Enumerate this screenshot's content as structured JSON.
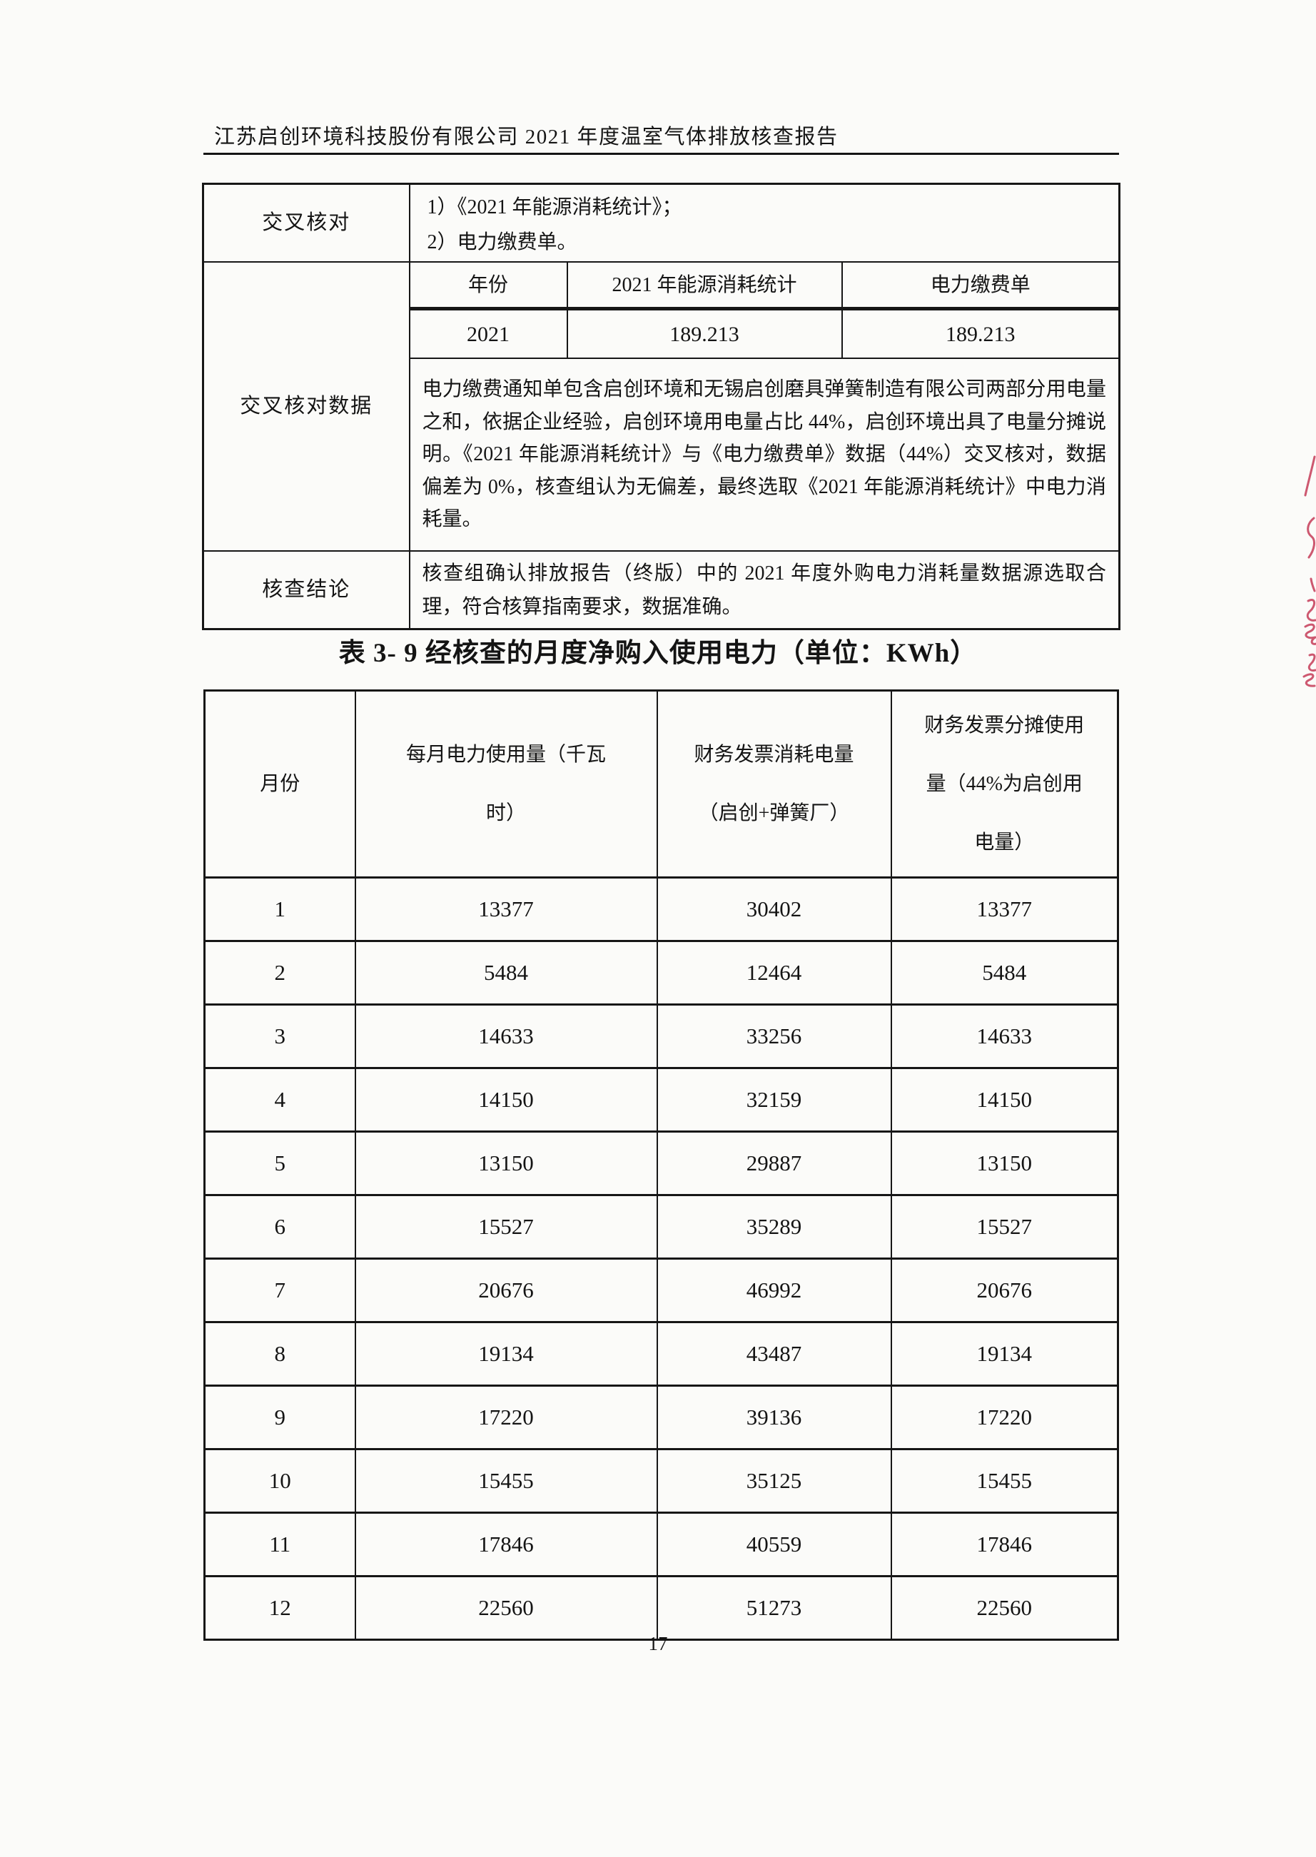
{
  "page": {
    "header_title": "江苏启创环境科技股份有限公司 2021 年度温室气体排放核查报告",
    "page_number": "17"
  },
  "summary_table": {
    "cross_check": {
      "label": "交叉核对",
      "line1": "1）《2021 年能源消耗统计》；",
      "line2": "2）电力缴费单。"
    },
    "cross_check_data": {
      "label": "交叉核对数据",
      "nested_header": [
        "年份",
        "2021 年能源消耗统计",
        "电力缴费单"
      ],
      "nested_values": [
        "2021",
        "189.213",
        "189.213"
      ],
      "paragraph": "电力缴费通知单包含启创环境和无锡启创磨具弹簧制造有限公司两部分用电量之和，依据企业经验，启创环境用电量占比 44%，启创环境出具了电量分摊说明。《2021 年能源消耗统计》与《电力缴费单》数据（44%）交叉核对，数据偏差为 0%，核查组认为无偏差，最终选取《2021 年能源消耗统计》中电力消耗量。"
    },
    "conclusion": {
      "label": "核查结论",
      "text": "核查组确认排放报告（终版）中的 2021 年度外购电力消耗量数据源选取合理，符合核算指南要求，数据准确。"
    }
  },
  "monthly_table": {
    "title": "表 3- 9 经核查的月度净购入使用电力（单位：KWh）",
    "columns": [
      {
        "lines": [
          "月份"
        ]
      },
      {
        "lines": [
          "每月电力使用量（千瓦",
          "时）"
        ]
      },
      {
        "lines": [
          "财务发票消耗电量",
          "（启创+弹簧厂）"
        ]
      },
      {
        "lines": [
          "财务发票分摊使用",
          "量（44%为启创用",
          "电量）"
        ]
      }
    ],
    "rows": [
      [
        "1",
        "13377",
        "30402",
        "13377"
      ],
      [
        "2",
        "5484",
        "12464",
        "5484"
      ],
      [
        "3",
        "14633",
        "33256",
        "14633"
      ],
      [
        "4",
        "14150",
        "32159",
        "14150"
      ],
      [
        "5",
        "13150",
        "29887",
        "13150"
      ],
      [
        "6",
        "15527",
        "35289",
        "15527"
      ],
      [
        "7",
        "20676",
        "46992",
        "20676"
      ],
      [
        "8",
        "19134",
        "43487",
        "19134"
      ],
      [
        "9",
        "17220",
        "39136",
        "17220"
      ],
      [
        "10",
        "15455",
        "35125",
        "15455"
      ],
      [
        "11",
        "17846",
        "40559",
        "17846"
      ],
      [
        "12",
        "22560",
        "51273",
        "22560"
      ]
    ]
  },
  "decor": {
    "red_ink_color": "#c2304d"
  }
}
